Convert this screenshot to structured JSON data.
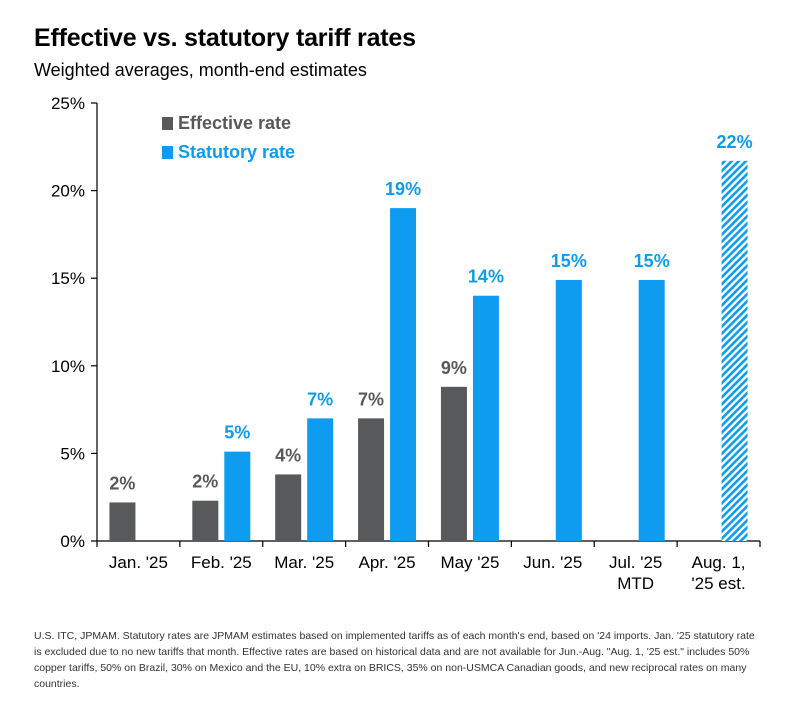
{
  "title": "Effective vs. statutory tariff rates",
  "subtitle": "Weighted averages, month-end estimates",
  "footnote": "U.S. ITC, JPMAM. Statutory rates are JPMAM estimates based on implemented tariffs as of each month's end, based on '24 imports. Jan. '25 statutory rate is excluded due to no new tariffs that month. Effective rates are based on historical data and are not available for Jun.-Aug. \"Aug. 1, '25 est.\" includes 50% copper tariffs, 50% on Brazil, 30% on Mexico and the EU, 10% extra on BRICS, 35% on non-USMCA Canadian goods, and new reciprocal rates on many countries.",
  "colors": {
    "effective": "#58595b",
    "statutory": "#0d9cf0",
    "axis": "#000000"
  },
  "chart_data": {
    "type": "bar",
    "title": "Effective vs. statutory tariff rates",
    "subtitle": "Weighted averages, month-end estimates",
    "categories": [
      [
        "Jan. '25"
      ],
      [
        "Feb. '25"
      ],
      [
        "Mar. '25"
      ],
      [
        "Apr. '25"
      ],
      [
        "May '25"
      ],
      [
        "Jun. '25"
      ],
      [
        "Jul. '25",
        "MTD"
      ],
      [
        "Aug. 1,",
        "'25 est."
      ]
    ],
    "series": [
      {
        "name": "Effective rate",
        "key": "effective",
        "values": [
          2.2,
          2.3,
          3.8,
          7.0,
          8.8,
          null,
          null,
          null
        ],
        "labels": [
          "2%",
          "2%",
          "4%",
          "7%",
          "9%",
          null,
          null,
          null
        ]
      },
      {
        "name": "Statutory rate",
        "key": "statutory",
        "values": [
          null,
          5.1,
          7.0,
          19.0,
          14.0,
          14.9,
          14.9,
          21.7
        ],
        "labels": [
          null,
          "5%",
          "7%",
          "19%",
          "14%",
          "15%",
          "15%",
          "22%"
        ],
        "hatched": [
          false,
          false,
          false,
          false,
          false,
          false,
          false,
          true
        ]
      }
    ],
    "yticks": [
      0,
      5,
      10,
      15,
      20,
      25
    ],
    "ytick_labels": [
      "0%",
      "5%",
      "10%",
      "15%",
      "20%",
      "25%"
    ],
    "ylim": [
      0,
      25
    ],
    "legend": "top-left",
    "grid": false
  }
}
